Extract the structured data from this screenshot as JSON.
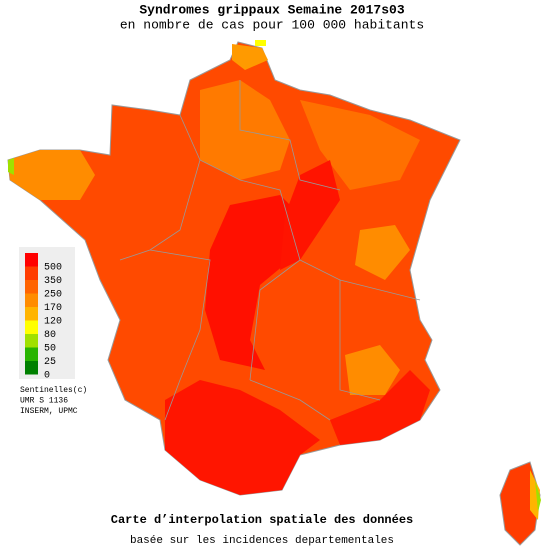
{
  "header": {
    "title": "Syndromes grippaux Semaine 2017s03",
    "subtitle": "en nombre de cas pour 100 000 habitants"
  },
  "legend": {
    "items": [
      {
        "label": 500,
        "color": "#ff0000"
      },
      {
        "label": 350,
        "color": "#ff3c00"
      },
      {
        "label": 250,
        "color": "#ff6400"
      },
      {
        "label": 170,
        "color": "#ff8c00"
      },
      {
        "label": 120,
        "color": "#ffb400"
      },
      {
        "label": 80,
        "color": "#ffff00"
      },
      {
        "label": 50,
        "color": "#a0e000"
      },
      {
        "label": 25,
        "color": "#28b400"
      },
      {
        "label": 0,
        "color": "#008000"
      }
    ]
  },
  "credits": [
    "Sentinelles(c)",
    "UMR S 1136",
    "INSERM, UPMC"
  ],
  "footer": {
    "title": "Carte d’interpolation spatiale des données",
    "subtitle": "basée sur les incidences departementales"
  }
}
